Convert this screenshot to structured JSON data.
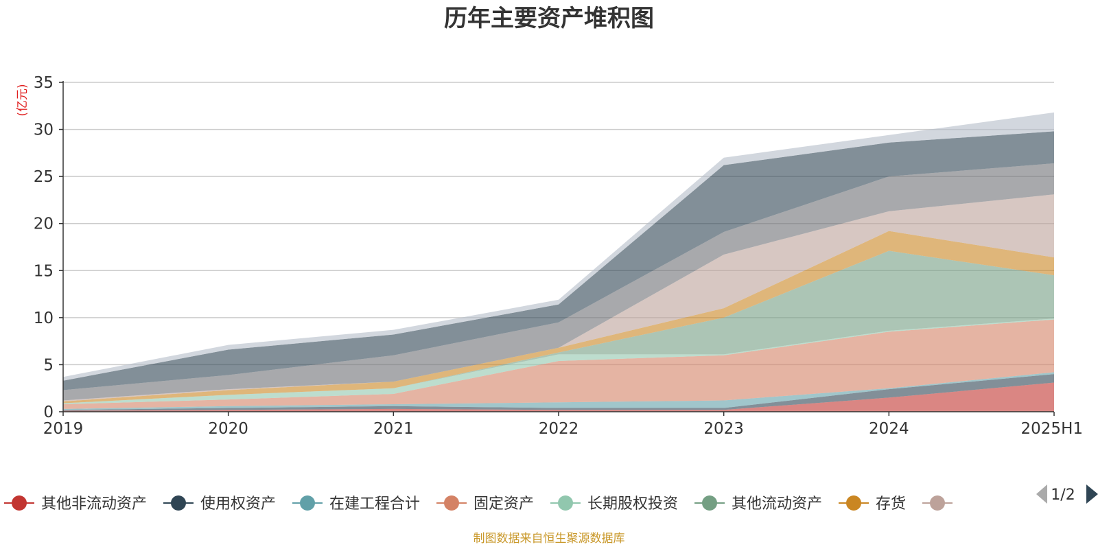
{
  "chart_data": {
    "type": "area",
    "title": "历年主要资产堆积图",
    "unit_label": "(亿元)",
    "x": [
      "2019",
      "2020",
      "2021",
      "2022",
      "2023",
      "2024",
      "2025H1"
    ],
    "ylim": [
      0,
      35
    ],
    "yticks": [
      0,
      5,
      10,
      15,
      20,
      25,
      30,
      35
    ],
    "grid": true,
    "stacked": true,
    "series": [
      {
        "name": "其他非流动资产",
        "color": "#c23531",
        "values": [
          0.1,
          0.2,
          0.3,
          0.2,
          0.2,
          1.5,
          3.1
        ]
      },
      {
        "name": "使用权资产",
        "color": "#2f4554",
        "values": [
          0.1,
          0.2,
          0.3,
          0.2,
          0.2,
          0.9,
          0.9
        ]
      },
      {
        "name": "在建工程合计",
        "color": "#61a0a8",
        "values": [
          0.1,
          0.2,
          0.2,
          0.6,
          0.8,
          0.1,
          0.2
        ]
      },
      {
        "name": "固定资产",
        "color": "#d48265",
        "values": [
          0.5,
          0.7,
          1.1,
          4.4,
          4.8,
          6.0,
          5.6
        ]
      },
      {
        "name": "长期股权投资",
        "color": "#91c7ae",
        "values": [
          0.1,
          0.5,
          0.6,
          0.7,
          0.1,
          0.1,
          0.1
        ]
      },
      {
        "name": "其他流动资产",
        "color": "#749f83",
        "values": [
          0.0,
          0.0,
          0.0,
          0.2,
          3.9,
          8.5,
          4.6
        ]
      },
      {
        "name": "存货",
        "color": "#ca8622",
        "values": [
          0.2,
          0.5,
          0.7,
          0.5,
          1.0,
          2.1,
          1.9
        ]
      },
      {
        "name": "",
        "color": "#bda29a",
        "values": [
          0.1,
          0.1,
          0.0,
          0.0,
          5.7,
          2.1,
          6.7
        ]
      },
      {
        "name": "",
        "color": "#6e7074",
        "values": [
          1.1,
          1.5,
          2.8,
          2.7,
          2.4,
          3.7,
          3.3
        ]
      },
      {
        "name": "",
        "color": "#2f4554",
        "values": [
          1.0,
          2.7,
          2.2,
          1.9,
          7.1,
          3.6,
          3.4
        ]
      },
      {
        "name": "",
        "color": "#b4bcc8",
        "values": [
          0.4,
          0.5,
          0.5,
          0.5,
          0.8,
          0.8,
          2.0
        ]
      }
    ],
    "legend": {
      "position": "bottom",
      "page_text": "1/2",
      "visible_count": 8
    }
  },
  "footer": "制图数据来自恒生聚源数据库"
}
